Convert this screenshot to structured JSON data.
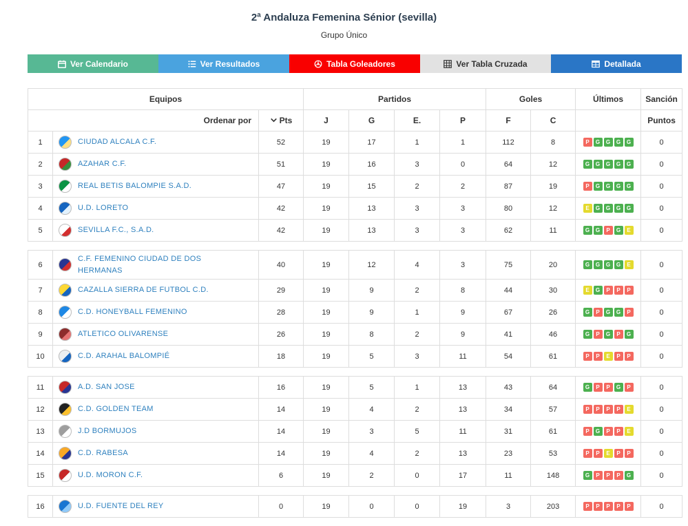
{
  "page": {
    "title": "2ª Andaluza Femenina Sénior (sevilla)",
    "subtitle": "Grupo Único"
  },
  "tabs": [
    {
      "id": "calendario",
      "label": "Ver Calendario",
      "icon": "calendar-icon",
      "color": "#57b894",
      "text_color": "#ffffff"
    },
    {
      "id": "resultados",
      "label": "Ver Resultados",
      "icon": "list-icon",
      "color": "#4aa3df",
      "text_color": "#ffffff"
    },
    {
      "id": "goleadores",
      "label": "Tabla Goleadores",
      "icon": "ball-icon",
      "color": "#f90000",
      "text_color": "#ffffff"
    },
    {
      "id": "cruzada",
      "label": "Ver Tabla Cruzada",
      "icon": "grid-icon",
      "color": "#e2e2e2",
      "text_color": "#333333"
    },
    {
      "id": "detallada",
      "label": "Detallada",
      "icon": "table-icon",
      "color": "#2a76c6",
      "text_color": "#ffffff"
    }
  ],
  "table": {
    "group_headers": {
      "equipos": "Equipos",
      "partidos": "Partidos",
      "goles": "Goles",
      "ultimos": "Últimos",
      "sancion": "Sanción"
    },
    "sub_headers": {
      "ordenar": "Ordenar por",
      "pts": "Pts",
      "j": "J",
      "g": "G",
      "e": "E.",
      "p": "P",
      "f": "F",
      "c": "C",
      "puntos": "Puntos"
    },
    "form_colors": {
      "G": "#4cb04f",
      "P": "#f4685f",
      "E": "#e4da2e"
    },
    "rows": [
      {
        "pos": 1,
        "team": "CIUDAD ALCALA C.F.",
        "badge_colors": [
          "#2196f3",
          "#ffe082"
        ],
        "pts": 52,
        "j": 19,
        "g": 17,
        "e": 1,
        "p": 1,
        "f": 112,
        "c": 8,
        "form": [
          "P",
          "G",
          "G",
          "G",
          "G"
        ],
        "sancion": 0,
        "gap_before": false
      },
      {
        "pos": 2,
        "team": "AZAHAR C.F.",
        "badge_colors": [
          "#c62828",
          "#388e3c"
        ],
        "pts": 51,
        "j": 19,
        "g": 16,
        "e": 3,
        "p": 0,
        "f": 64,
        "c": 12,
        "form": [
          "G",
          "G",
          "G",
          "G",
          "G"
        ],
        "sancion": 0,
        "gap_before": false
      },
      {
        "pos": 3,
        "team": "REAL BETIS BALOMPIE S.A.D.",
        "badge_colors": [
          "#0b9444",
          "#ffffff"
        ],
        "pts": 47,
        "j": 19,
        "g": 15,
        "e": 2,
        "p": 2,
        "f": 87,
        "c": 19,
        "form": [
          "P",
          "G",
          "G",
          "G",
          "G"
        ],
        "sancion": 0,
        "gap_before": false
      },
      {
        "pos": 4,
        "team": "U.D. LORETO",
        "badge_colors": [
          "#1565c0",
          "#e3f2fd"
        ],
        "pts": 42,
        "j": 19,
        "g": 13,
        "e": 3,
        "p": 3,
        "f": 80,
        "c": 12,
        "form": [
          "E",
          "G",
          "G",
          "G",
          "G"
        ],
        "sancion": 0,
        "gap_before": false
      },
      {
        "pos": 5,
        "team": "SEVILLA F.C., S.A.D.",
        "badge_colors": [
          "#ffffff",
          "#d32f2f"
        ],
        "pts": 42,
        "j": 19,
        "g": 13,
        "e": 3,
        "p": 3,
        "f": 62,
        "c": 11,
        "form": [
          "G",
          "G",
          "P",
          "G",
          "E"
        ],
        "sancion": 0,
        "gap_before": false
      },
      {
        "pos": 6,
        "team": "C.F. FEMENINO CIUDAD DE DOS HERMANAS",
        "badge_colors": [
          "#283593",
          "#d32f2f"
        ],
        "pts": 40,
        "j": 19,
        "g": 12,
        "e": 4,
        "p": 3,
        "f": 75,
        "c": 20,
        "form": [
          "G",
          "G",
          "G",
          "G",
          "E"
        ],
        "sancion": 0,
        "gap_before": true
      },
      {
        "pos": 7,
        "team": "CAZALLA SIERRA DE FUTBOL C.D.",
        "badge_colors": [
          "#fdd835",
          "#1565c0"
        ],
        "pts": 29,
        "j": 19,
        "g": 9,
        "e": 2,
        "p": 8,
        "f": 44,
        "c": 30,
        "form": [
          "E",
          "G",
          "P",
          "P",
          "P"
        ],
        "sancion": 0,
        "gap_before": false
      },
      {
        "pos": 8,
        "team": "C.D. HONEYBALL FEMENINO",
        "badge_colors": [
          "#1e88e5",
          "#ffffff"
        ],
        "pts": 28,
        "j": 19,
        "g": 9,
        "e": 1,
        "p": 9,
        "f": 67,
        "c": 26,
        "form": [
          "G",
          "P",
          "G",
          "G",
          "P"
        ],
        "sancion": 0,
        "gap_before": false
      },
      {
        "pos": 9,
        "team": "ATLETICO OLIVARENSE",
        "badge_colors": [
          "#8d2c2c",
          "#e57373"
        ],
        "pts": 26,
        "j": 19,
        "g": 8,
        "e": 2,
        "p": 9,
        "f": 41,
        "c": 46,
        "form": [
          "G",
          "P",
          "G",
          "P",
          "G"
        ],
        "sancion": 0,
        "gap_before": false
      },
      {
        "pos": 10,
        "team": "C.D. ARAHAL BALOMPIÉ",
        "badge_colors": [
          "#eceff1",
          "#1565c0"
        ],
        "pts": 18,
        "j": 19,
        "g": 5,
        "e": 3,
        "p": 11,
        "f": 54,
        "c": 61,
        "form": [
          "P",
          "P",
          "E",
          "P",
          "P"
        ],
        "sancion": 0,
        "gap_before": false
      },
      {
        "pos": 11,
        "team": "A.D. SAN JOSE",
        "badge_colors": [
          "#c62828",
          "#283593"
        ],
        "pts": 16,
        "j": 19,
        "g": 5,
        "e": 1,
        "p": 13,
        "f": 43,
        "c": 64,
        "form": [
          "G",
          "P",
          "P",
          "G",
          "P"
        ],
        "sancion": 0,
        "gap_before": true
      },
      {
        "pos": 12,
        "team": "C.D. GOLDEN TEAM",
        "badge_colors": [
          "#212121",
          "#fbc02d"
        ],
        "pts": 14,
        "j": 19,
        "g": 4,
        "e": 2,
        "p": 13,
        "f": 34,
        "c": 57,
        "form": [
          "P",
          "P",
          "P",
          "P",
          "E"
        ],
        "sancion": 0,
        "gap_before": false
      },
      {
        "pos": 13,
        "team": "J.D BORMUJOS",
        "badge_colors": [
          "#9e9e9e",
          "#ffffff"
        ],
        "pts": 14,
        "j": 19,
        "g": 3,
        "e": 5,
        "p": 11,
        "f": 31,
        "c": 61,
        "form": [
          "P",
          "G",
          "P",
          "P",
          "E"
        ],
        "sancion": 0,
        "gap_before": false
      },
      {
        "pos": 14,
        "team": "C.D. RABESA",
        "badge_colors": [
          "#f9a825",
          "#283593"
        ],
        "pts": 14,
        "j": 19,
        "g": 4,
        "e": 2,
        "p": 13,
        "f": 23,
        "c": 53,
        "form": [
          "P",
          "P",
          "E",
          "P",
          "P"
        ],
        "sancion": 0,
        "gap_before": false
      },
      {
        "pos": 15,
        "team": "U.D. MORON C.F.",
        "badge_colors": [
          "#c62828",
          "#ffffff"
        ],
        "pts": 6,
        "j": 19,
        "g": 2,
        "e": 0,
        "p": 17,
        "f": 11,
        "c": 148,
        "form": [
          "G",
          "P",
          "P",
          "P",
          "G"
        ],
        "sancion": 0,
        "gap_before": false
      },
      {
        "pos": 16,
        "team": "U.D. FUENTE DEL REY",
        "badge_colors": [
          "#1976d2",
          "#90caf9"
        ],
        "pts": 0,
        "j": 19,
        "g": 0,
        "e": 0,
        "p": 19,
        "f": 3,
        "c": 203,
        "form": [
          "P",
          "P",
          "P",
          "P",
          "P"
        ],
        "sancion": 0,
        "gap_before": true
      }
    ]
  }
}
